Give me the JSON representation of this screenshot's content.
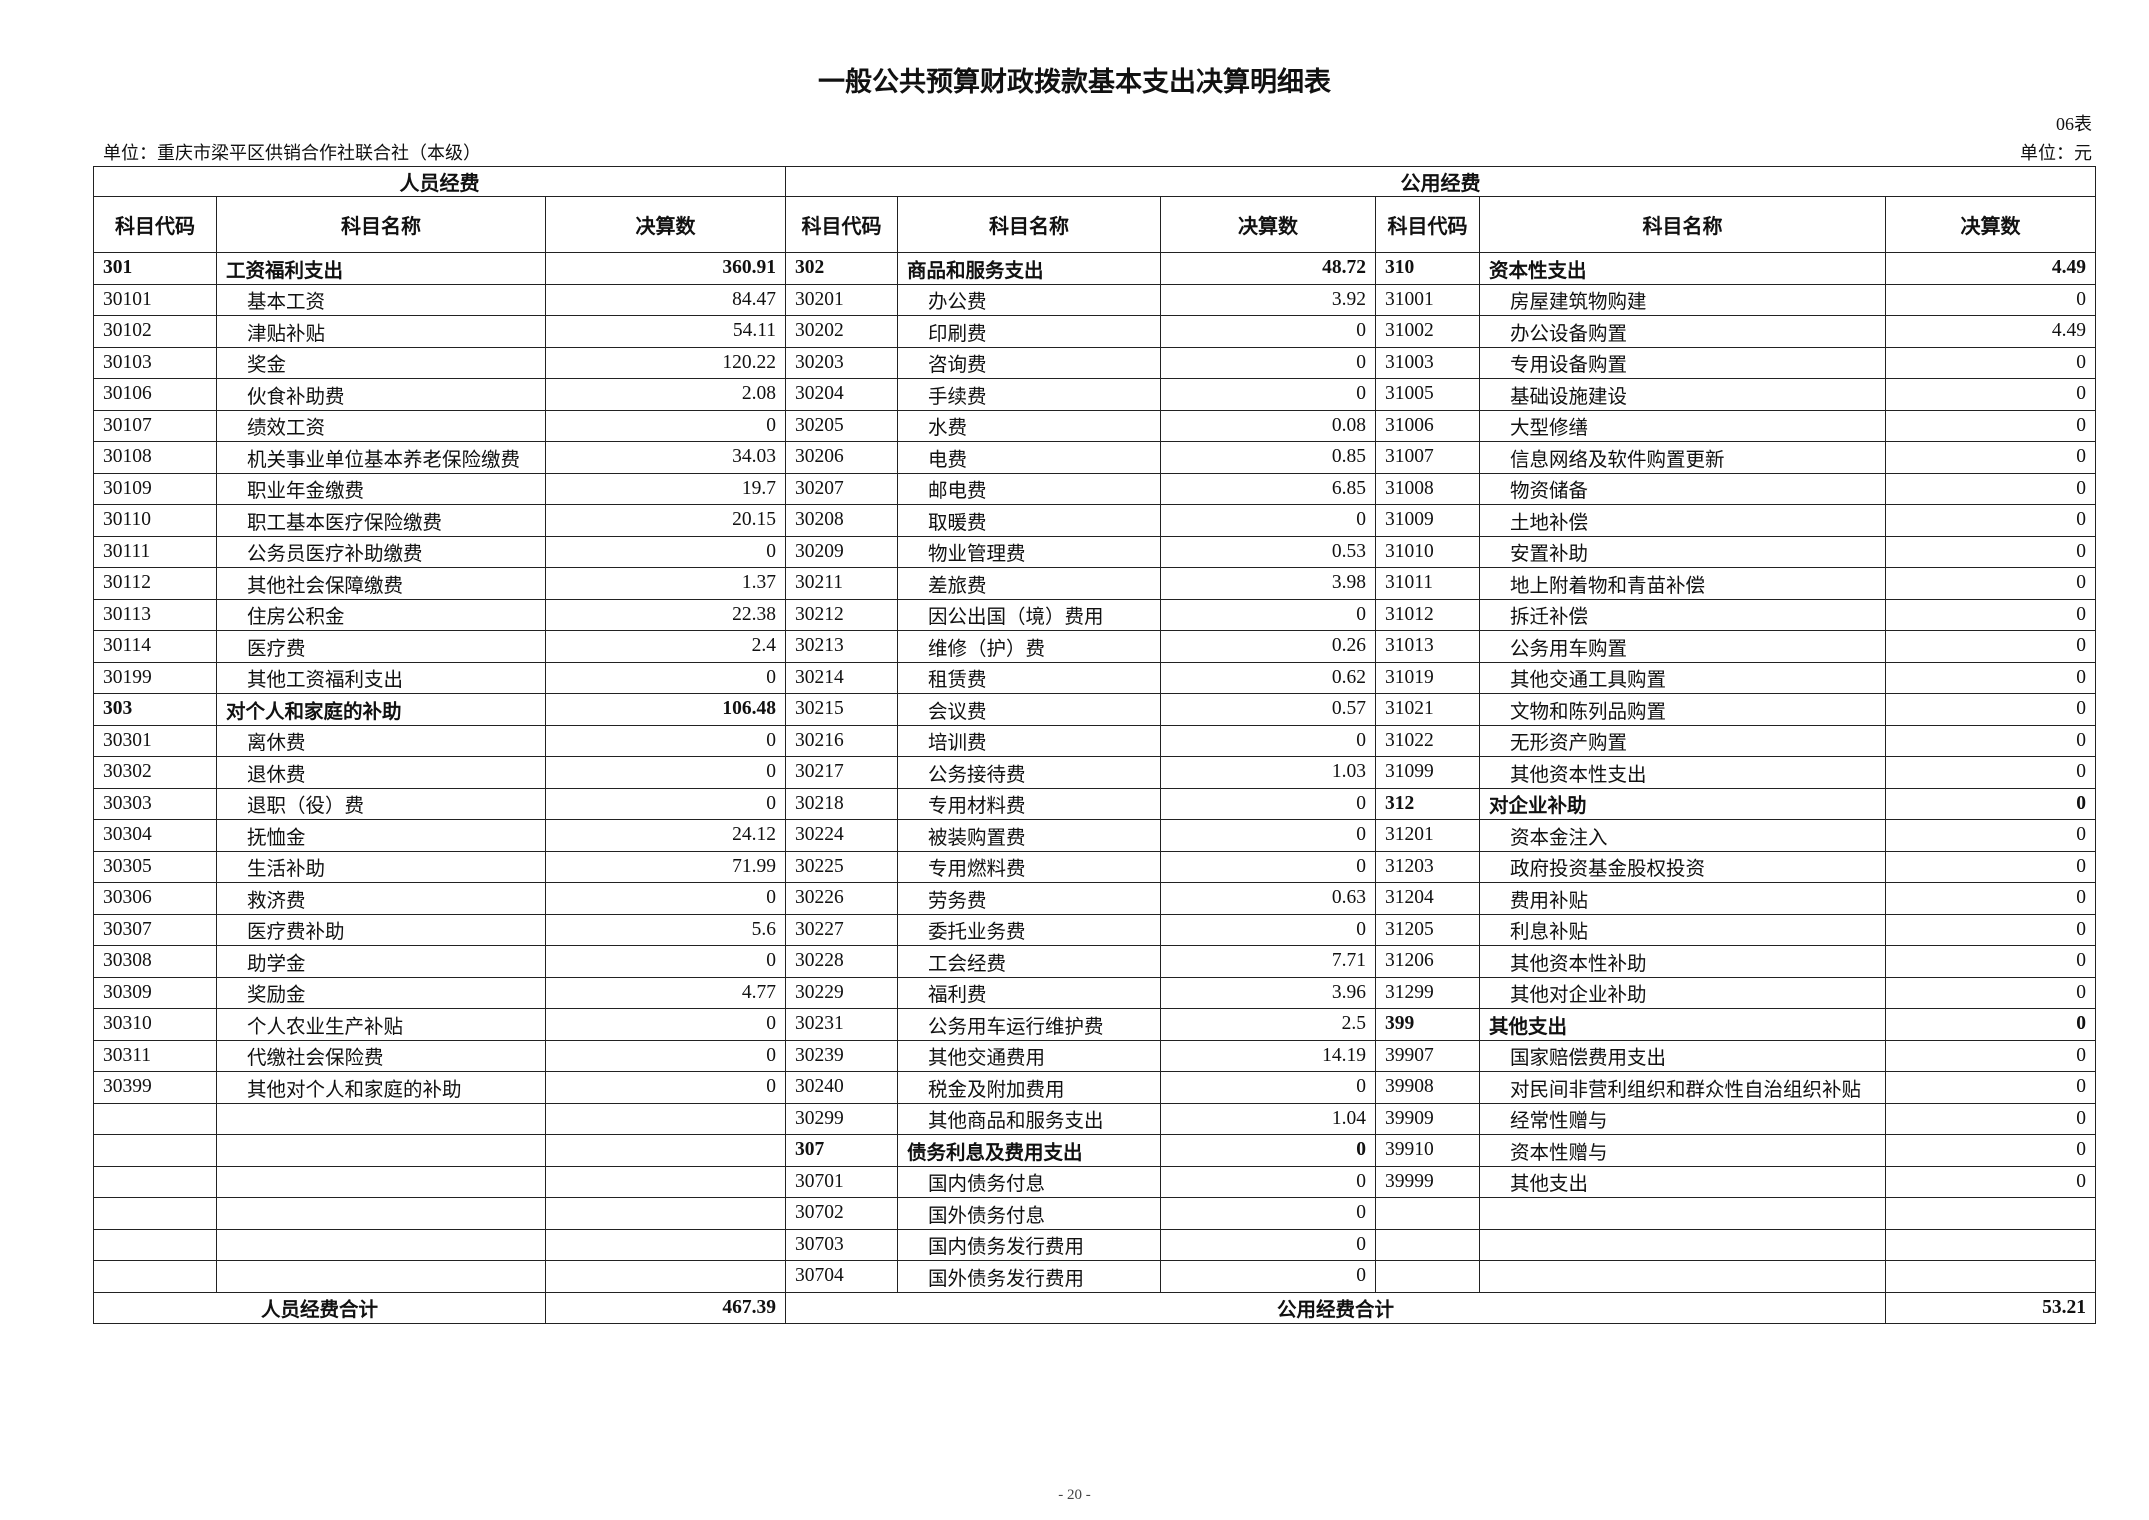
{
  "title": "一般公共预算财政拨款基本支出决算明细表",
  "table_no": "06表",
  "unit_org": "单位：重庆市梁平区供销合作社联合社（本级）",
  "unit_currency": "单位：元",
  "groups": {
    "personnel": "人员经费",
    "public": "公用经费"
  },
  "columns": {
    "code": "科目代码",
    "name": "科目名称",
    "amount": "决算数"
  },
  "personnel_rows": [
    {
      "code": "301",
      "name": "工资福利支出",
      "amount": "360.91",
      "bold": true
    },
    {
      "code": "30101",
      "name": "基本工资",
      "amount": "84.47"
    },
    {
      "code": "30102",
      "name": "津贴补贴",
      "amount": "54.11"
    },
    {
      "code": "30103",
      "name": "奖金",
      "amount": "120.22"
    },
    {
      "code": "30106",
      "name": "伙食补助费",
      "amount": "2.08"
    },
    {
      "code": "30107",
      "name": "绩效工资",
      "amount": "0"
    },
    {
      "code": "30108",
      "name": "机关事业单位基本养老保险缴费",
      "amount": "34.03"
    },
    {
      "code": "30109",
      "name": "职业年金缴费",
      "amount": "19.7"
    },
    {
      "code": "30110",
      "name": "职工基本医疗保险缴费",
      "amount": "20.15"
    },
    {
      "code": "30111",
      "name": "公务员医疗补助缴费",
      "amount": "0"
    },
    {
      "code": "30112",
      "name": "其他社会保障缴费",
      "amount": "1.37"
    },
    {
      "code": "30113",
      "name": "住房公积金",
      "amount": "22.38"
    },
    {
      "code": "30114",
      "name": "医疗费",
      "amount": "2.4"
    },
    {
      "code": "30199",
      "name": "其他工资福利支出",
      "amount": "0"
    },
    {
      "code": "303",
      "name": "对个人和家庭的补助",
      "amount": "106.48",
      "bold": true
    },
    {
      "code": "30301",
      "name": "离休费",
      "amount": "0"
    },
    {
      "code": "30302",
      "name": "退休费",
      "amount": "0"
    },
    {
      "code": "30303",
      "name": "退职（役）费",
      "amount": "0"
    },
    {
      "code": "30304",
      "name": "抚恤金",
      "amount": "24.12"
    },
    {
      "code": "30305",
      "name": "生活补助",
      "amount": "71.99"
    },
    {
      "code": "30306",
      "name": "救济费",
      "amount": "0"
    },
    {
      "code": "30307",
      "name": "医疗费补助",
      "amount": "5.6"
    },
    {
      "code": "30308",
      "name": "助学金",
      "amount": "0"
    },
    {
      "code": "30309",
      "name": "奖励金",
      "amount": "4.77"
    },
    {
      "code": "30310",
      "name": "个人农业生产补贴",
      "amount": "0"
    },
    {
      "code": "30311",
      "name": "代缴社会保险费",
      "amount": "0"
    },
    {
      "code": "30399",
      "name": "其他对个人和家庭的补助",
      "amount": "0"
    }
  ],
  "public_rows_a": [
    {
      "code": "302",
      "name": "商品和服务支出",
      "amount": "48.72",
      "bold": true
    },
    {
      "code": "30201",
      "name": "办公费",
      "amount": "3.92"
    },
    {
      "code": "30202",
      "name": "印刷费",
      "amount": "0"
    },
    {
      "code": "30203",
      "name": "咨询费",
      "amount": "0"
    },
    {
      "code": "30204",
      "name": "手续费",
      "amount": "0"
    },
    {
      "code": "30205",
      "name": "水费",
      "amount": "0.08"
    },
    {
      "code": "30206",
      "name": "电费",
      "amount": "0.85"
    },
    {
      "code": "30207",
      "name": "邮电费",
      "amount": "6.85"
    },
    {
      "code": "30208",
      "name": "取暖费",
      "amount": "0"
    },
    {
      "code": "30209",
      "name": "物业管理费",
      "amount": "0.53"
    },
    {
      "code": "30211",
      "name": "差旅费",
      "amount": "3.98"
    },
    {
      "code": "30212",
      "name": "因公出国（境）费用",
      "amount": "0"
    },
    {
      "code": "30213",
      "name": "维修（护）费",
      "amount": "0.26"
    },
    {
      "code": "30214",
      "name": "租赁费",
      "amount": "0.62"
    },
    {
      "code": "30215",
      "name": "会议费",
      "amount": "0.57"
    },
    {
      "code": "30216",
      "name": "培训费",
      "amount": "0"
    },
    {
      "code": "30217",
      "name": "公务接待费",
      "amount": "1.03"
    },
    {
      "code": "30218",
      "name": "专用材料费",
      "amount": "0"
    },
    {
      "code": "30224",
      "name": "被装购置费",
      "amount": "0"
    },
    {
      "code": "30225",
      "name": "专用燃料费",
      "amount": "0"
    },
    {
      "code": "30226",
      "name": "劳务费",
      "amount": "0.63"
    },
    {
      "code": "30227",
      "name": "委托业务费",
      "amount": "0"
    },
    {
      "code": "30228",
      "name": "工会经费",
      "amount": "7.71"
    },
    {
      "code": "30229",
      "name": "福利费",
      "amount": "3.96"
    },
    {
      "code": "30231",
      "name": "公务用车运行维护费",
      "amount": "2.5"
    },
    {
      "code": "30239",
      "name": "其他交通费用",
      "amount": "14.19"
    },
    {
      "code": "30240",
      "name": "税金及附加费用",
      "amount": "0"
    },
    {
      "code": "30299",
      "name": "其他商品和服务支出",
      "amount": "1.04"
    },
    {
      "code": "307",
      "name": "债务利息及费用支出",
      "amount": "0",
      "bold": true
    },
    {
      "code": "30701",
      "name": "国内债务付息",
      "amount": "0"
    },
    {
      "code": "30702",
      "name": "国外债务付息",
      "amount": "0"
    },
    {
      "code": "30703",
      "name": "国内债务发行费用",
      "amount": "0"
    },
    {
      "code": "30704",
      "name": "国外债务发行费用",
      "amount": "0"
    }
  ],
  "public_rows_b": [
    {
      "code": "310",
      "name": "资本性支出",
      "amount": "4.49",
      "bold": true
    },
    {
      "code": "31001",
      "name": "房屋建筑物购建",
      "amount": "0"
    },
    {
      "code": "31002",
      "name": "办公设备购置",
      "amount": "4.49"
    },
    {
      "code": "31003",
      "name": "专用设备购置",
      "amount": "0"
    },
    {
      "code": "31005",
      "name": "基础设施建设",
      "amount": "0"
    },
    {
      "code": "31006",
      "name": "大型修缮",
      "amount": "0"
    },
    {
      "code": "31007",
      "name": "信息网络及软件购置更新",
      "amount": "0"
    },
    {
      "code": "31008",
      "name": "物资储备",
      "amount": "0"
    },
    {
      "code": "31009",
      "name": "土地补偿",
      "amount": "0"
    },
    {
      "code": "31010",
      "name": "安置补助",
      "amount": "0"
    },
    {
      "code": "31011",
      "name": "地上附着物和青苗补偿",
      "amount": "0"
    },
    {
      "code": "31012",
      "name": "拆迁补偿",
      "amount": "0"
    },
    {
      "code": "31013",
      "name": "公务用车购置",
      "amount": "0"
    },
    {
      "code": "31019",
      "name": "其他交通工具购置",
      "amount": "0"
    },
    {
      "code": "31021",
      "name": "文物和陈列品购置",
      "amount": "0"
    },
    {
      "code": "31022",
      "name": "无形资产购置",
      "amount": "0"
    },
    {
      "code": "31099",
      "name": "其他资本性支出",
      "amount": "0"
    },
    {
      "code": "312",
      "name": "对企业补助",
      "amount": "0",
      "bold": true
    },
    {
      "code": "31201",
      "name": "资本金注入",
      "amount": "0"
    },
    {
      "code": "31203",
      "name": "政府投资基金股权投资",
      "amount": "0"
    },
    {
      "code": "31204",
      "name": "费用补贴",
      "amount": "0"
    },
    {
      "code": "31205",
      "name": "利息补贴",
      "amount": "0"
    },
    {
      "code": "31206",
      "name": "其他资本性补助",
      "amount": "0"
    },
    {
      "code": "31299",
      "name": "其他对企业补助",
      "amount": "0"
    },
    {
      "code": "399",
      "name": "其他支出",
      "amount": "0",
      "bold": true
    },
    {
      "code": "39907",
      "name": "国家赔偿费用支出",
      "amount": "0"
    },
    {
      "code": "39908",
      "name": "对民间非营利组织和群众性自治组织补贴",
      "amount": "0"
    },
    {
      "code": "39909",
      "name": "经常性赠与",
      "amount": "0"
    },
    {
      "code": "39910",
      "name": "资本性赠与",
      "amount": "0"
    },
    {
      "code": "39999",
      "name": "其他支出",
      "amount": "0"
    }
  ],
  "totals": {
    "personnel_label": "人员经费合计",
    "personnel_amount": "467.39",
    "public_label": "公用经费合计",
    "public_amount": "53.21"
  },
  "page_number": "- 20 -"
}
